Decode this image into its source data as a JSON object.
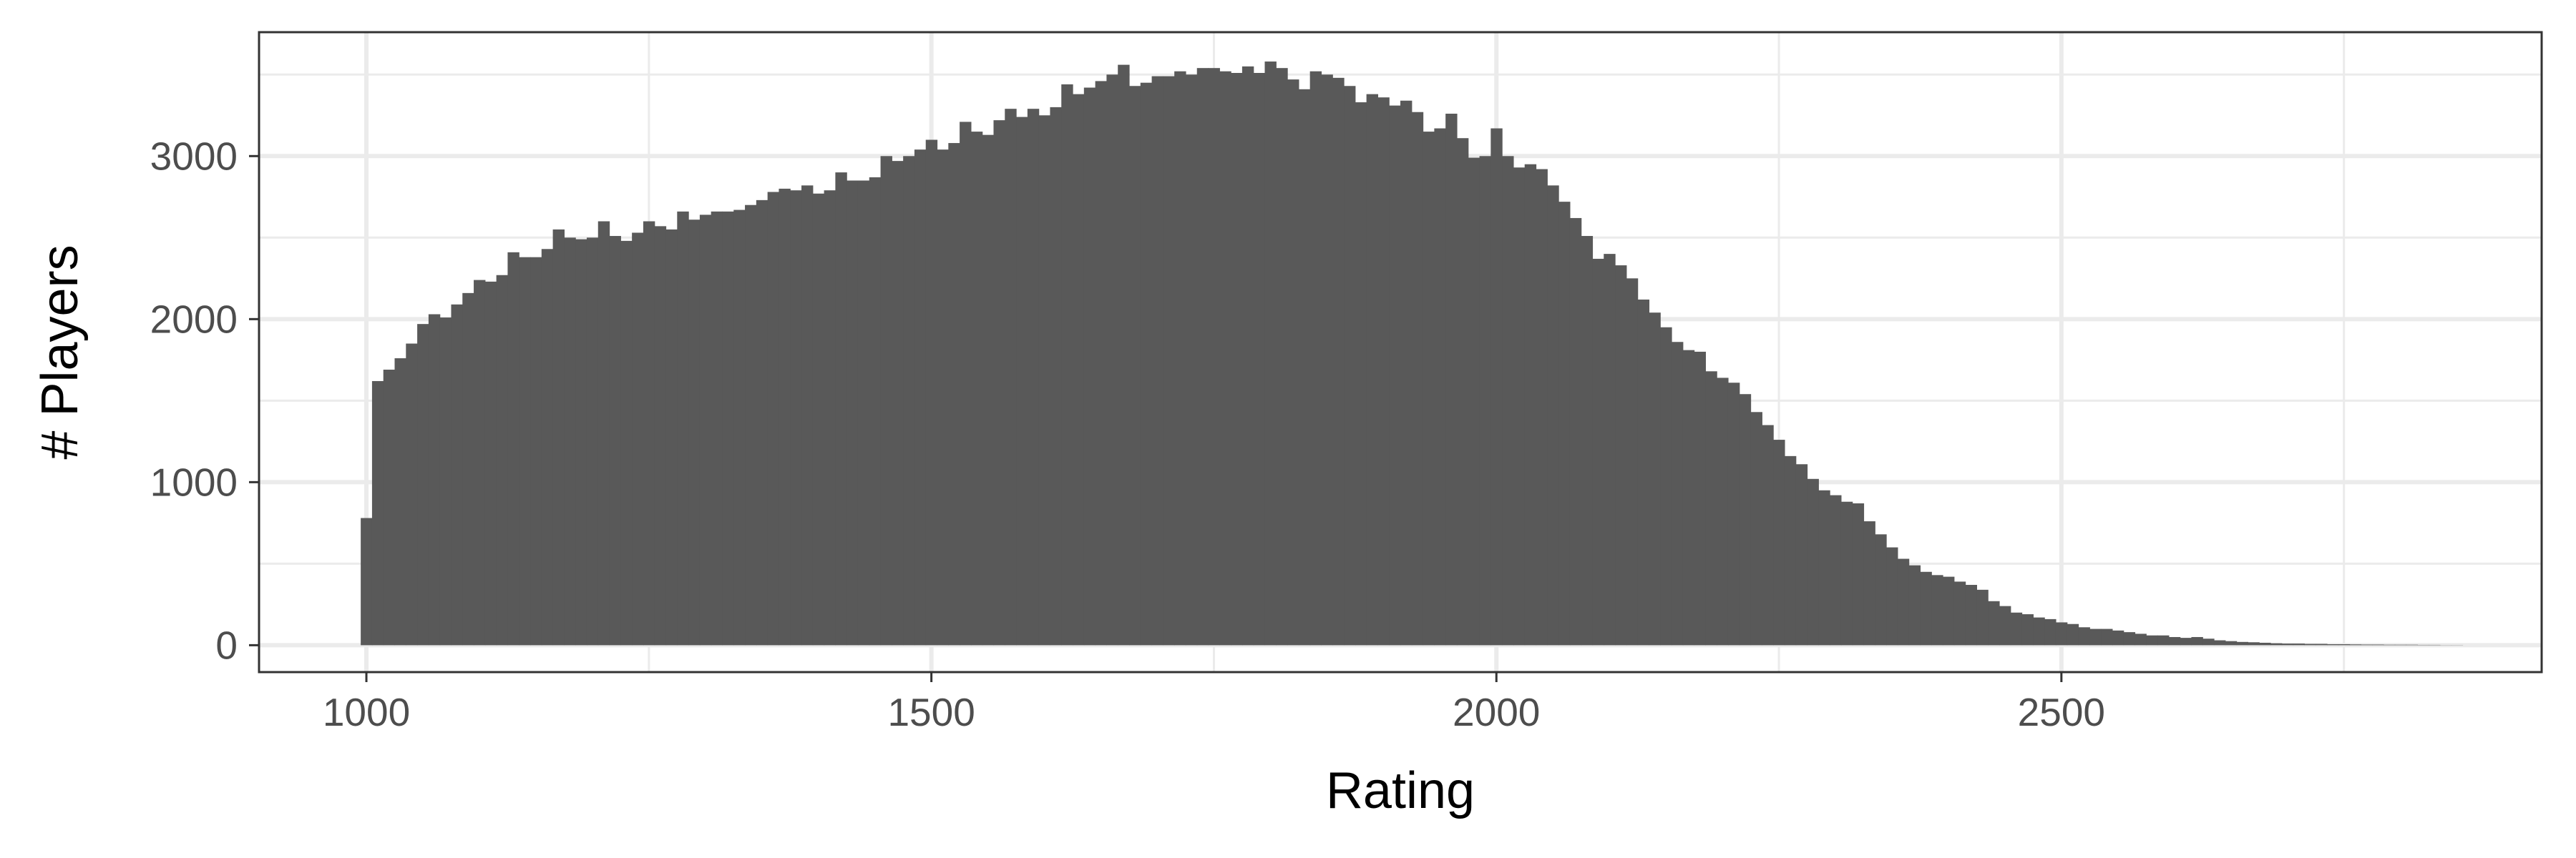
{
  "chart_data": {
    "type": "bar",
    "subtype": "histogram",
    "xlabel": "Rating",
    "ylabel": "# Players",
    "xlim": [
      905,
      2925
    ],
    "ylim": [
      -165,
      3760
    ],
    "x_ticks": [
      1000,
      1500,
      2000,
      2500
    ],
    "y_ticks": [
      0,
      1000,
      2000,
      3000
    ],
    "grid": true,
    "bin_width": 10,
    "bin_start": 995,
    "values": [
      780,
      1620,
      1690,
      1760,
      1850,
      1970,
      2030,
      2010,
      2090,
      2160,
      2240,
      2230,
      2270,
      2410,
      2380,
      2380,
      2430,
      2550,
      2500,
      2490,
      2500,
      2600,
      2510,
      2480,
      2530,
      2600,
      2570,
      2550,
      2660,
      2610,
      2640,
      2660,
      2660,
      2670,
      2700,
      2730,
      2780,
      2800,
      2790,
      2820,
      2770,
      2790,
      2900,
      2850,
      2850,
      2870,
      3000,
      2970,
      3000,
      3040,
      3100,
      3040,
      3080,
      3210,
      3150,
      3130,
      3220,
      3290,
      3240,
      3290,
      3250,
      3300,
      3440,
      3380,
      3420,
      3460,
      3500,
      3560,
      3430,
      3450,
      3490,
      3490,
      3520,
      3500,
      3540,
      3540,
      3520,
      3510,
      3550,
      3510,
      3580,
      3540,
      3470,
      3410,
      3520,
      3500,
      3480,
      3430,
      3330,
      3380,
      3360,
      3310,
      3340,
      3270,
      3150,
      3170,
      3260,
      3110,
      2990,
      3000,
      3170,
      3000,
      2930,
      2950,
      2920,
      2820,
      2720,
      2620,
      2510,
      2370,
      2400,
      2330,
      2250,
      2120,
      2040,
      1950,
      1860,
      1810,
      1800,
      1680,
      1640,
      1610,
      1540,
      1430,
      1350,
      1260,
      1160,
      1110,
      1020,
      950,
      920,
      880,
      870,
      760,
      680,
      600,
      530,
      490,
      450,
      430,
      420,
      390,
      370,
      340,
      270,
      240,
      200,
      190,
      170,
      160,
      140,
      130,
      110,
      100,
      100,
      90,
      80,
      70,
      60,
      60,
      50,
      45,
      50,
      40,
      30,
      25,
      20,
      18,
      15,
      12,
      10,
      10,
      8,
      8,
      6,
      6,
      5,
      4,
      4,
      3,
      3,
      3,
      2,
      2,
      1,
      1
    ]
  }
}
